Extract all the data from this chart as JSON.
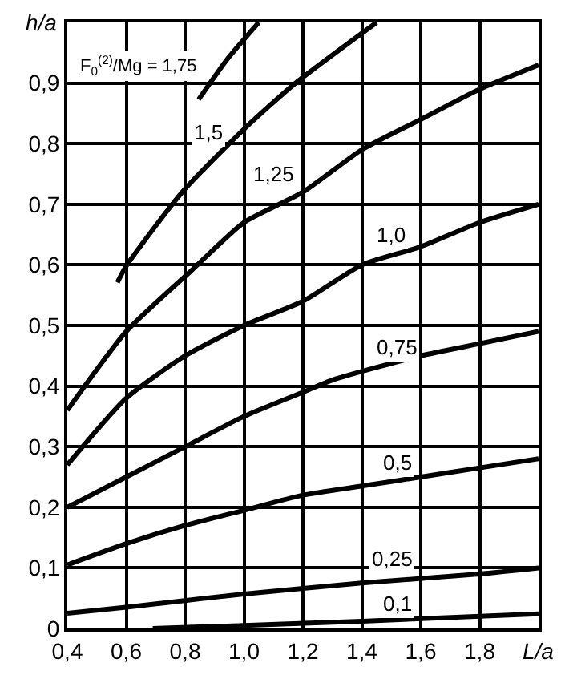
{
  "chart_data": {
    "type": "line",
    "xlabel": "L/a",
    "ylabel": "h/a",
    "xlim": [
      0.4,
      2.0
    ],
    "ylim": [
      0,
      1.0
    ],
    "xticks": [
      {
        "value": 0.4,
        "label": "0,4"
      },
      {
        "value": 0.6,
        "label": "0,6"
      },
      {
        "value": 0.8,
        "label": "0,8"
      },
      {
        "value": 1.0,
        "label": "1,0"
      },
      {
        "value": 1.2,
        "label": "1,2"
      },
      {
        "value": 1.4,
        "label": "1,4"
      },
      {
        "value": 1.6,
        "label": "1,6"
      },
      {
        "value": 1.8,
        "label": "1,8"
      },
      {
        "value": 2.0,
        "label": null
      }
    ],
    "yticks": [
      0,
      {
        "value": 0.1,
        "label": "0,1"
      },
      {
        "value": 0.2,
        "label": "0,2"
      },
      {
        "value": 0.3,
        "label": "0,3"
      },
      {
        "value": 0.4,
        "label": "0,4"
      },
      {
        "value": 0.5,
        "label": "0,5"
      },
      {
        "value": 0.6,
        "label": "0,6"
      },
      {
        "value": 0.7,
        "label": "0,7"
      },
      {
        "value": 0.8,
        "label": "0,8"
      },
      {
        "value": 0.9,
        "label": "0,9"
      },
      {
        "value": 1.0,
        "label": null
      }
    ],
    "grid": true,
    "marker": "none",
    "line_style": "solid",
    "series": [
      {
        "color": "#000000",
        "x": [
          0.846,
          0.944,
          1.05
        ],
        "values": [
          0.873,
          0.94,
          1.0
        ]
      },
      {
        "color": "#000000",
        "x": [
          0.57,
          0.6,
          0.79,
          1.0,
          1.175,
          1.45
        ],
        "values": [
          0.571,
          0.598,
          0.72,
          0.824,
          0.9,
          1.0
        ]
      },
      {
        "color": "#000000",
        "x": [
          0.4,
          0.6,
          0.82,
          1.0,
          1.2,
          1.4,
          1.6,
          1.8,
          2.0
        ],
        "values": [
          0.36,
          0.49,
          0.59,
          0.67,
          0.72,
          0.79,
          0.84,
          0.89,
          0.93
        ]
      },
      {
        "color": "#000000",
        "x": [
          0.4,
          0.6,
          0.8,
          1.0,
          1.2,
          1.4,
          1.6,
          1.8,
          2.0
        ],
        "values": [
          0.27,
          0.38,
          0.45,
          0.5,
          0.54,
          0.6,
          0.63,
          0.67,
          0.7
        ]
      },
      {
        "color": "#000000",
        "x": [
          0.4,
          0.6,
          0.8,
          1.0,
          1.2,
          1.3,
          1.6,
          1.8,
          2.0
        ],
        "values": [
          0.2,
          0.25,
          0.3,
          0.35,
          0.39,
          0.41,
          0.45,
          0.47,
          0.49
        ]
      },
      {
        "color": "#000000",
        "x": [
          0.4,
          0.6,
          0.8,
          1.0,
          1.2,
          1.4,
          1.6,
          1.8,
          2.0
        ],
        "values": [
          0.105,
          0.14,
          0.17,
          0.195,
          0.22,
          0.235,
          0.25,
          0.265,
          0.28
        ]
      },
      {
        "color": "#000000",
        "x": [
          0.4,
          0.6,
          1.0,
          1.4,
          1.8,
          2.0
        ],
        "values": [
          0.025,
          0.035,
          0.057,
          0.075,
          0.09,
          0.1
        ]
      },
      {
        "color": "#000000",
        "x": [
          0.69,
          1.0,
          1.4,
          2.0
        ],
        "values": [
          0.0,
          0.005,
          0.012,
          0.024
        ]
      }
    ],
    "annotations": [
      "F$_{0}$$^{(2)}$/Mg = 1,75",
      {
        "text": "1,5",
        "x": 0.88,
        "y": 0.82
      },
      {
        "text": "1,25",
        "x": 1.1,
        "y": 0.75
      },
      {
        "text": "1,0",
        "x": 1.5,
        "y": 0.65
      },
      {
        "text": "0,75",
        "x": 1.52,
        "y": 0.465
      },
      {
        "text": "0,5",
        "x": 1.52,
        "y": 0.275
      },
      {
        "text": "0,25",
        "x": 1.5,
        "y": 0.115
      },
      {
        "text": "0,1",
        "x": 1.52,
        "y": 0.04
      }
    ]
  }
}
